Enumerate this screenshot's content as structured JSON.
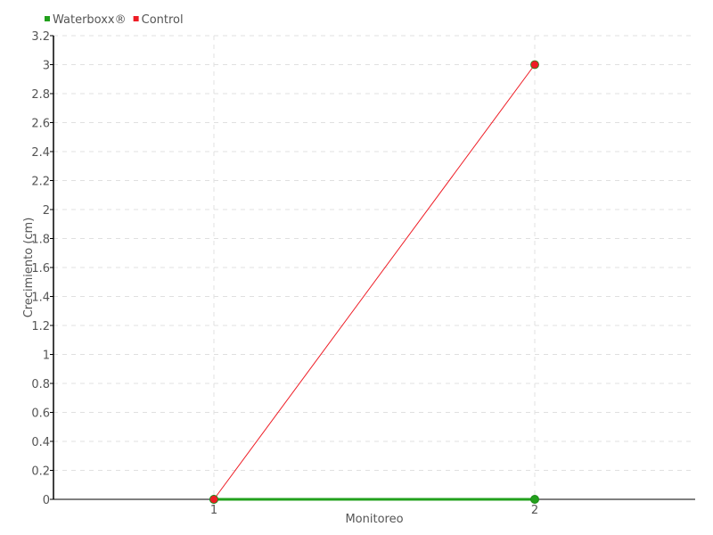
{
  "chart_data": {
    "type": "line",
    "title": "",
    "xlabel": "Monitoreo",
    "ylabel": "Crecimiento (cm)",
    "x": [
      1,
      2
    ],
    "xlim": [
      0.5,
      2.5
    ],
    "ylim": [
      0,
      3.2
    ],
    "yticks": [
      "0",
      "0.2",
      "0.4",
      "0.6",
      "0.8",
      "1",
      "1.2",
      "1.4",
      "1.6",
      "1.8",
      "2",
      "2.2",
      "2.4",
      "2.6",
      "2.8",
      "3",
      "3.2"
    ],
    "xticks": [
      "1",
      "2"
    ],
    "grid": true,
    "legend_position": "top-left",
    "series": [
      {
        "name": "Waterboxx®",
        "color": "#22a01c",
        "values": [
          0,
          0
        ]
      },
      {
        "name": "Control",
        "color": "#ee1c25",
        "values": [
          0,
          3
        ]
      }
    ]
  }
}
